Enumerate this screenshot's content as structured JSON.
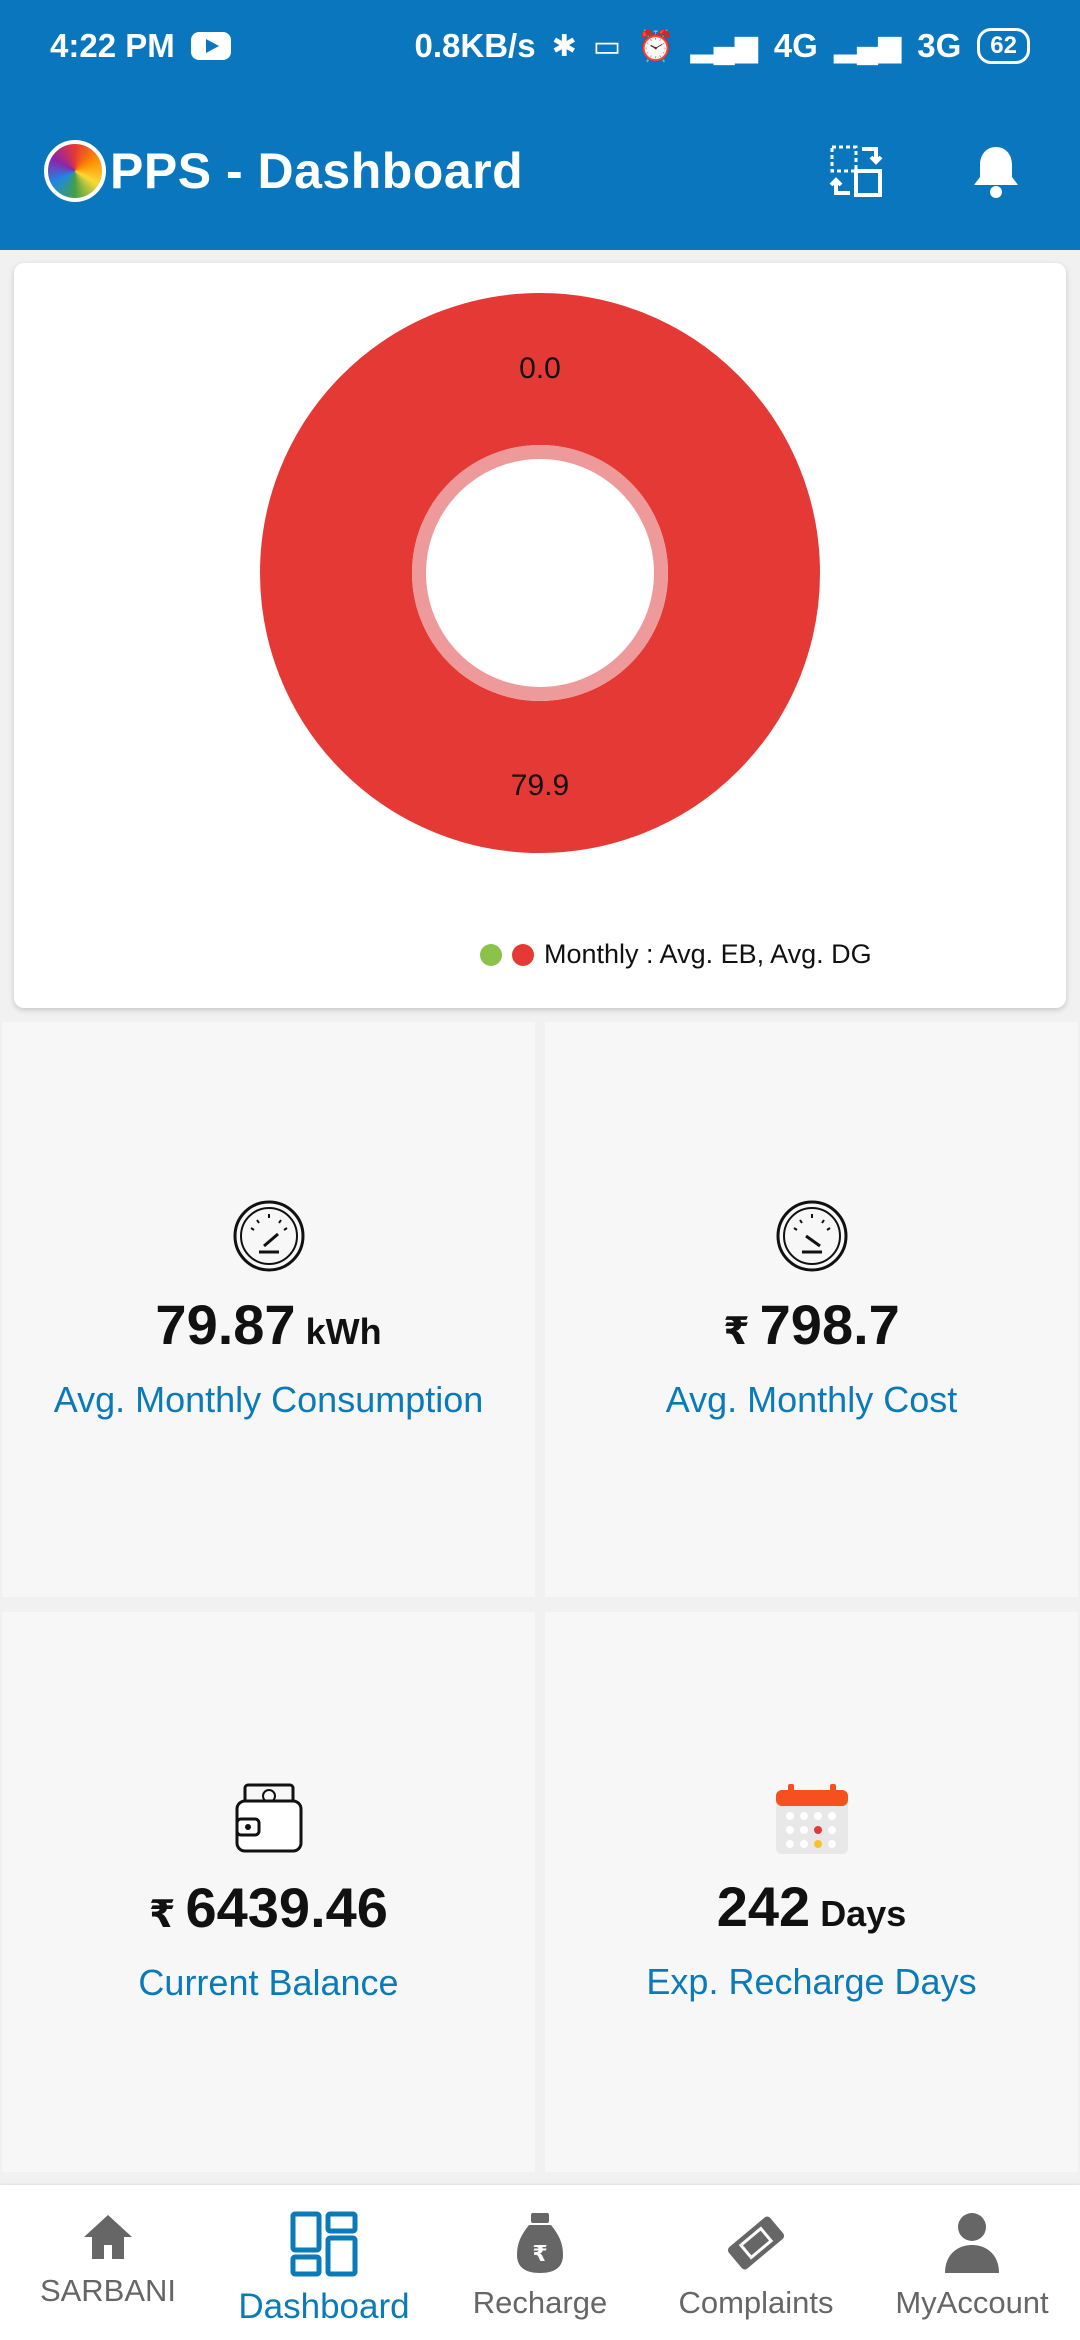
{
  "status_bar": {
    "time": "4:22 PM",
    "network_speed": "0.8KB/s",
    "net1": "4G",
    "net2": "3G",
    "battery": "62"
  },
  "app_bar": {
    "title": "PPS - Dashboard",
    "icons": [
      "switch-account-icon",
      "bell-icon"
    ]
  },
  "chart_data": {
    "type": "pie",
    "variant": "donut",
    "slices": [
      {
        "label": "Avg. EB",
        "value": 0.0,
        "color": "#8bc34a"
      },
      {
        "label": "Avg. DG",
        "value": 79.9,
        "color": "#e53935"
      }
    ],
    "data_labels": [
      "0.0",
      "79.9"
    ],
    "legend": "Monthly : Avg. EB, Avg. DG",
    "legend_position": "bottom"
  },
  "tiles": [
    {
      "value": "79.87",
      "unit": "kWh",
      "label": "Avg. Monthly Consumption",
      "icon": "speedometer-icon"
    },
    {
      "currency": "₹",
      "value": "798.7",
      "label": "Avg. Monthly Cost",
      "icon": "speedometer-icon"
    },
    {
      "currency": "₹",
      "value": "6439.46",
      "label": "Current Balance",
      "icon": "wallet-icon"
    },
    {
      "value": "242",
      "unit": "Days",
      "label": "Exp. Recharge Days",
      "icon": "calendar-icon"
    }
  ],
  "bottom_nav": {
    "items": [
      {
        "label": "SARBANI",
        "icon": "home-icon"
      },
      {
        "label": "Dashboard",
        "icon": "dashboard-icon",
        "active": true
      },
      {
        "label": "Recharge",
        "icon": "money-bag-icon"
      },
      {
        "label": "Complaints",
        "icon": "ticket-icon"
      },
      {
        "label": "MyAccount",
        "icon": "person-icon"
      }
    ]
  },
  "colors": {
    "primary": "#0a76bd",
    "accent_text": "#0a7ab8",
    "donut_red": "#e53935",
    "donut_green": "#8bc34a"
  }
}
